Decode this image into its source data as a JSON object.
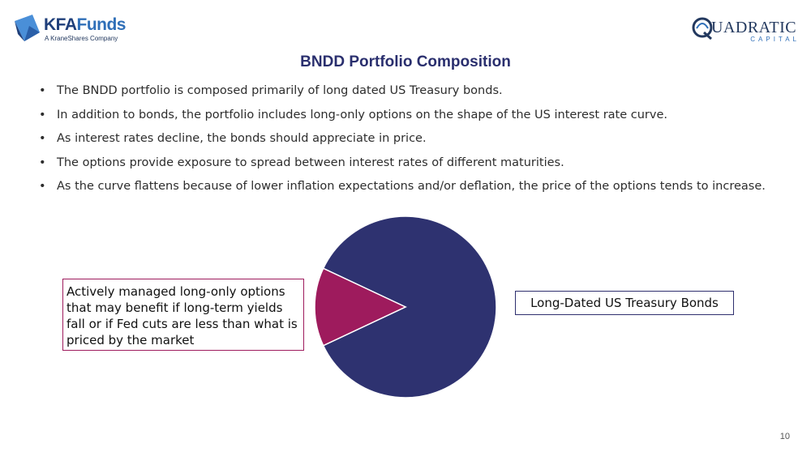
{
  "header": {
    "kfa_logo": {
      "name_part1": "KFA",
      "name_part2": "Funds",
      "subtitle": "A KraneShares Company"
    },
    "quadratic_logo": {
      "name": "UADRATIC",
      "subtitle": "CAPITAL"
    }
  },
  "slide": {
    "title": "BNDD Portfolio Composition",
    "bullets": [
      "The BNDD portfolio is composed primarily of long dated US Treasury bonds.",
      "In addition to bonds, the portfolio includes long-only options on the shape of the US interest rate curve.",
      "As interest rates decline, the bonds should appreciate in price.",
      "The options provide exposure to spread between interest rates of different maturities.",
      "As the curve flattens because of lower inflation expectations and/or deflation, the price of the options tends to increase."
    ],
    "bullet_char": "•",
    "page_number": "10"
  },
  "chart_data": {
    "type": "pie",
    "slices": [
      {
        "label": "Long-Dated US Treasury Bonds",
        "value": 86,
        "color": "#2e3270"
      },
      {
        "label": "Actively managed long-only options that may benefit if long-term yields fall or if Fed cuts are less than what is priced by the market",
        "value": 14,
        "color": "#9e1b5d"
      }
    ],
    "title": "",
    "legend": "callout labels"
  },
  "colors": {
    "title": "#2a2f6e",
    "bonds": "#2e3270",
    "options": "#9e1b5d"
  }
}
